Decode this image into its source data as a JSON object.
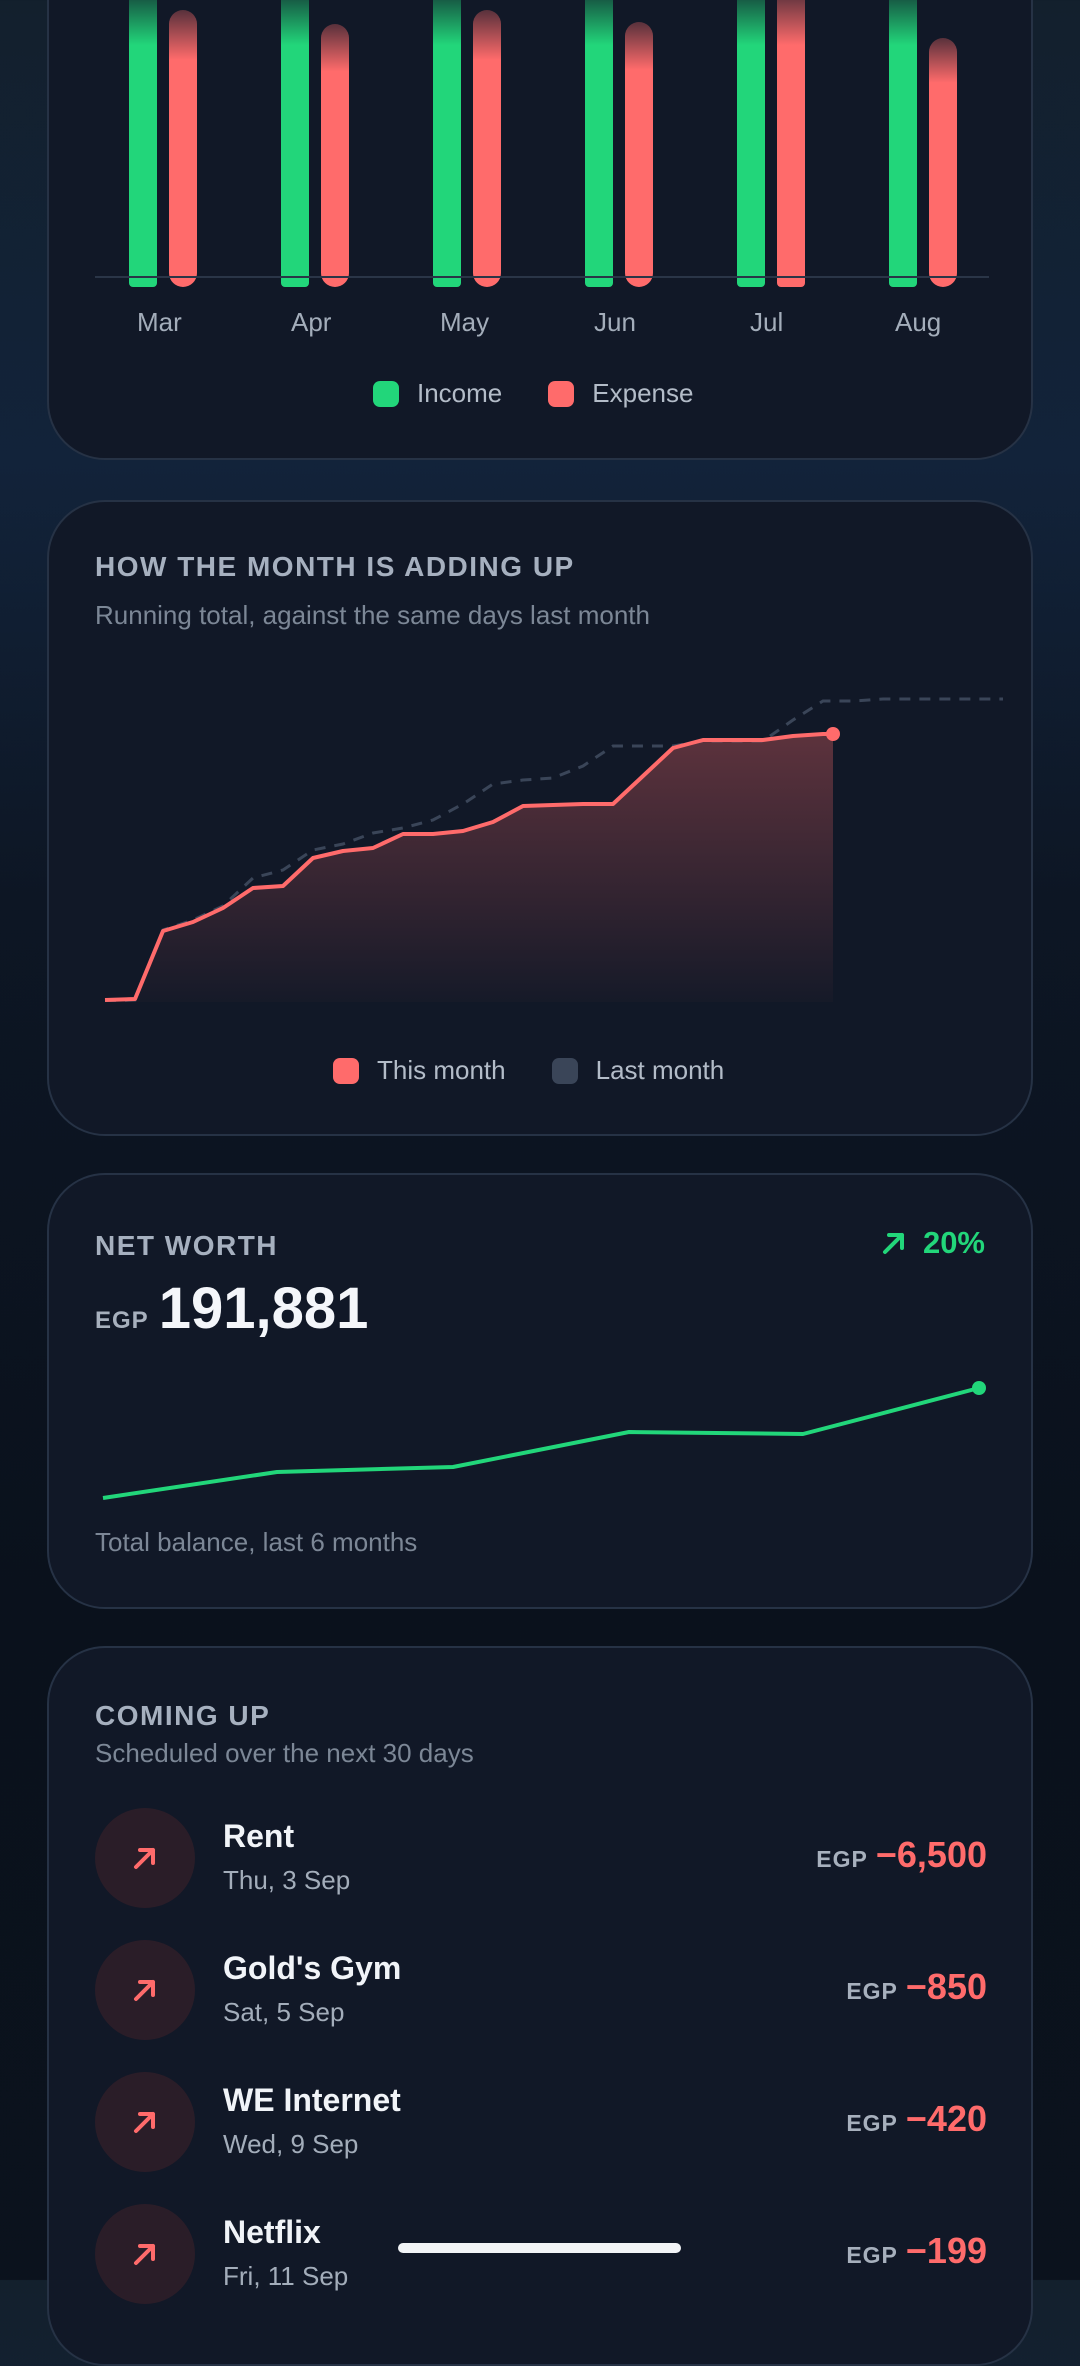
{
  "income_expense": {
    "months": [
      "Mar",
      "Apr",
      "May",
      "Jun",
      "Jul",
      "Aug"
    ],
    "legend": {
      "income": "Income",
      "expense": "Expense"
    }
  },
  "month_progress": {
    "title": "HOW THE MONTH IS ADDING UP",
    "subtitle": "Running total, against the same days last month",
    "legend": {
      "this_month": "This month",
      "last_month": "Last month"
    }
  },
  "net_worth": {
    "title": "NET WORTH",
    "change": "20%",
    "currency": "EGP",
    "value": "191,881",
    "caption": "Total balance, last 6 months"
  },
  "coming_up": {
    "title": "COMING UP",
    "subtitle": "Scheduled over the next 30 days",
    "items": [
      {
        "name": "Rent",
        "date": "Thu, 3 Sep",
        "currency": "EGP",
        "amount": "−6,500"
      },
      {
        "name": "Gold's Gym",
        "date": "Sat, 5 Sep",
        "currency": "EGP",
        "amount": "−850"
      },
      {
        "name": "WE Internet",
        "date": "Wed, 9 Sep",
        "currency": "EGP",
        "amount": "−420"
      },
      {
        "name": "Netflix",
        "date": "Fri, 11 Sep",
        "currency": "EGP",
        "amount": "−199"
      }
    ]
  },
  "colors": {
    "income": "#22d67a",
    "expense": "#ff6b6b",
    "last_month": "#3a4558",
    "accent_green": "#22d67a"
  },
  "icons": {
    "outgoing": "arrow-up-right-icon",
    "trend": "trend-up-icon"
  }
}
